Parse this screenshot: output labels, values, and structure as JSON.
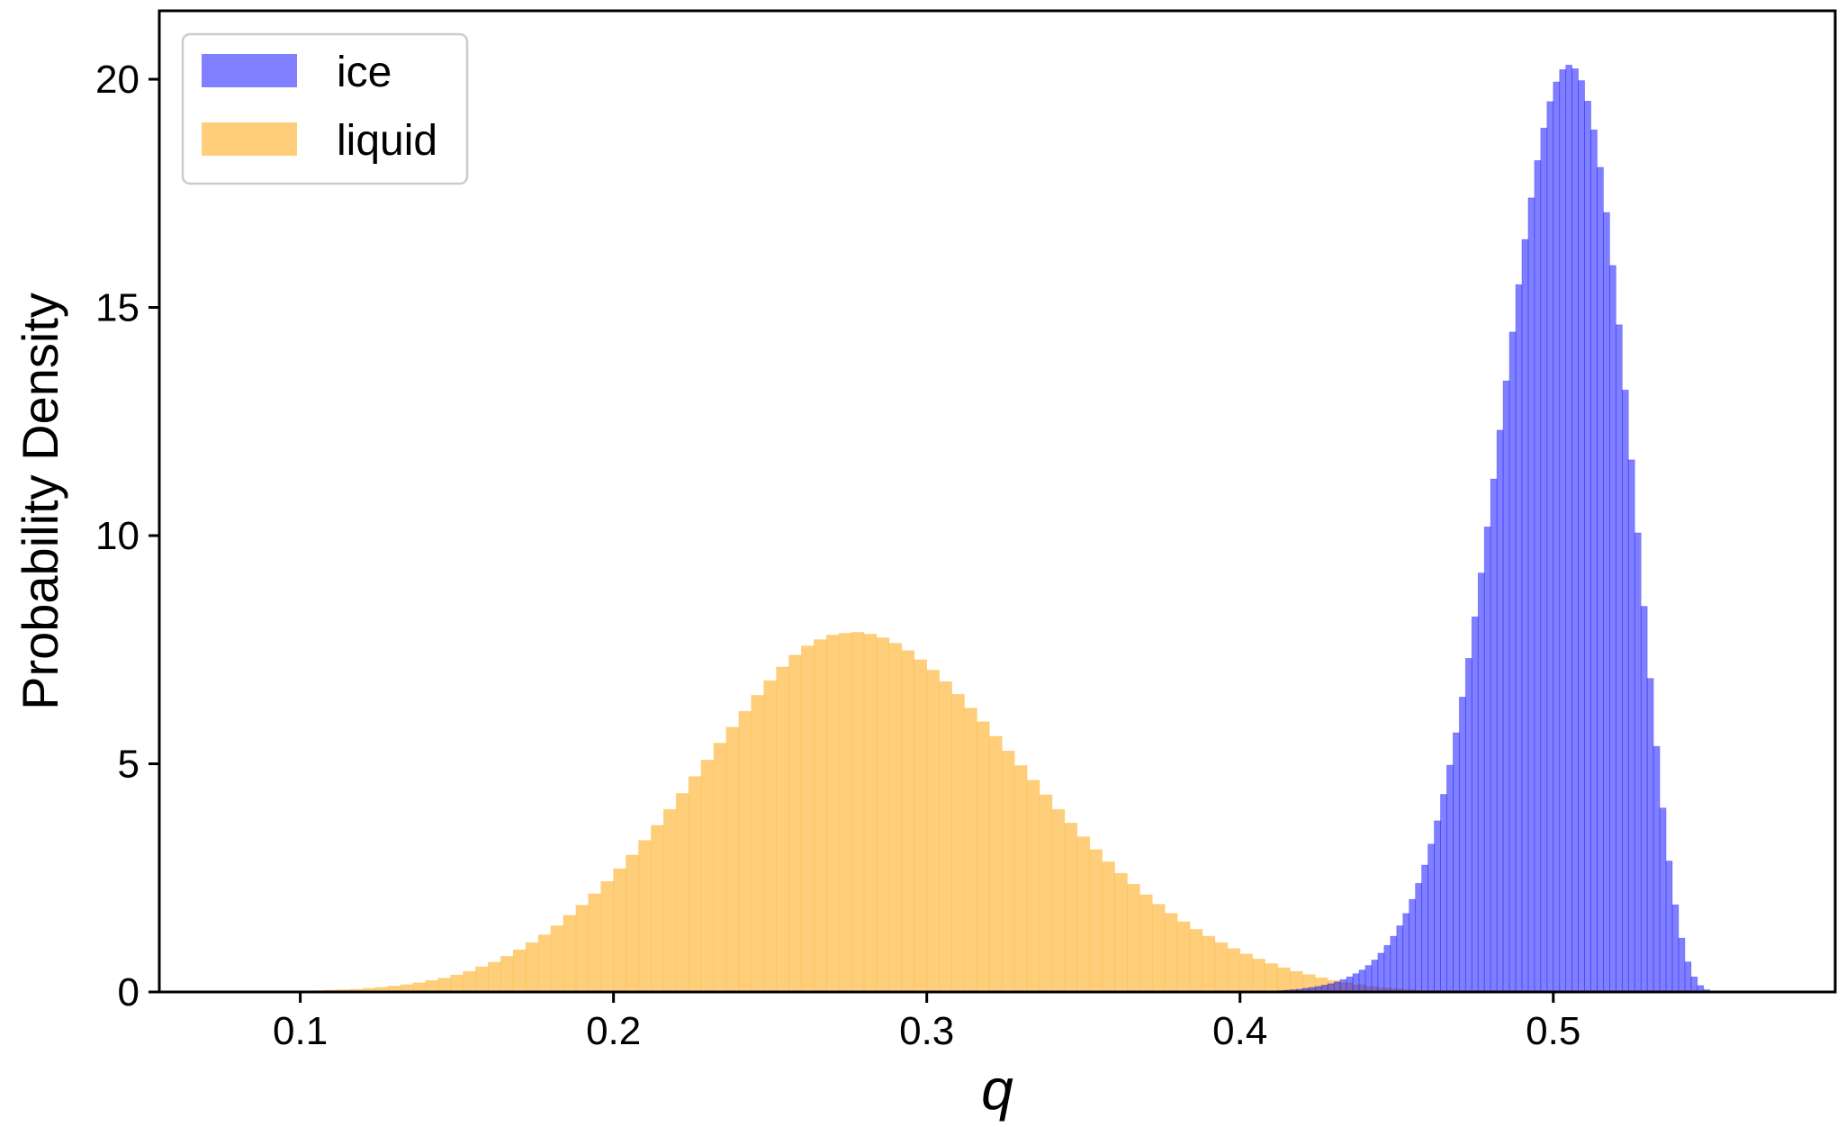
{
  "chart_data": {
    "type": "histogram",
    "title": "",
    "xlabel": "q",
    "ylabel": "Probability Density",
    "xlim": [
      0.055,
      0.59
    ],
    "ylim": [
      0,
      21.5
    ],
    "xticks": [
      0.1,
      0.2,
      0.3,
      0.4,
      0.5
    ],
    "xtick_labels": [
      "0.1",
      "0.2",
      "0.3",
      "0.4",
      "0.5"
    ],
    "yticks": [
      0,
      5,
      10,
      15,
      20
    ],
    "ytick_labels": [
      "0",
      "5",
      "10",
      "15",
      "20"
    ],
    "grid": false,
    "legend": {
      "position": "top-left",
      "entries": [
        "ice",
        "liquid"
      ]
    },
    "series": [
      {
        "name": "liquid",
        "color": "#fdbe4d",
        "alpha": 0.75,
        "bin_start": 0.08,
        "bin_width": 0.004,
        "values": [
          0.01,
          0.01,
          0.01,
          0.01,
          0.01,
          0.02,
          0.03,
          0.04,
          0.05,
          0.06,
          0.08,
          0.1,
          0.13,
          0.16,
          0.2,
          0.25,
          0.3,
          0.37,
          0.45,
          0.55,
          0.65,
          0.78,
          0.92,
          1.08,
          1.25,
          1.45,
          1.68,
          1.9,
          2.15,
          2.42,
          2.7,
          3.0,
          3.32,
          3.65,
          4.0,
          4.35,
          4.72,
          5.08,
          5.45,
          5.8,
          6.15,
          6.5,
          6.82,
          7.12,
          7.38,
          7.58,
          7.72,
          7.82,
          7.86,
          7.88,
          7.84,
          7.76,
          7.64,
          7.48,
          7.28,
          7.05,
          6.8,
          6.52,
          6.22,
          5.92,
          5.6,
          5.28,
          4.96,
          4.64,
          4.32,
          4.0,
          3.7,
          3.4,
          3.12,
          2.85,
          2.6,
          2.36,
          2.13,
          1.92,
          1.72,
          1.54,
          1.37,
          1.22,
          1.08,
          0.95,
          0.83,
          0.72,
          0.62,
          0.53,
          0.45,
          0.38,
          0.31,
          0.25,
          0.2,
          0.16,
          0.12,
          0.09,
          0.07,
          0.05,
          0.03,
          0.02,
          0.01,
          0.01
        ]
      },
      {
        "name": "ice",
        "color": "#0000ff",
        "alpha": 0.5,
        "bin_start": 0.404,
        "bin_width": 0.002,
        "values": [
          0.01,
          0.01,
          0.02,
          0.02,
          0.03,
          0.04,
          0.05,
          0.06,
          0.08,
          0.1,
          0.12,
          0.15,
          0.18,
          0.22,
          0.27,
          0.33,
          0.4,
          0.48,
          0.58,
          0.7,
          0.85,
          1.02,
          1.22,
          1.45,
          1.72,
          2.03,
          2.38,
          2.78,
          3.24,
          3.75,
          4.33,
          4.97,
          5.68,
          6.46,
          7.31,
          8.22,
          9.18,
          10.19,
          11.24,
          12.31,
          13.39,
          14.46,
          15.5,
          16.49,
          17.4,
          18.22,
          18.93,
          19.51,
          19.94,
          20.21,
          20.31,
          20.23,
          19.97,
          19.52,
          18.89,
          18.07,
          17.08,
          15.92,
          14.62,
          13.19,
          11.66,
          10.06,
          8.45,
          6.87,
          5.38,
          4.03,
          2.87,
          1.91,
          1.18,
          0.66,
          0.33,
          0.14,
          0.05,
          0.02,
          0.01
        ]
      }
    ]
  }
}
